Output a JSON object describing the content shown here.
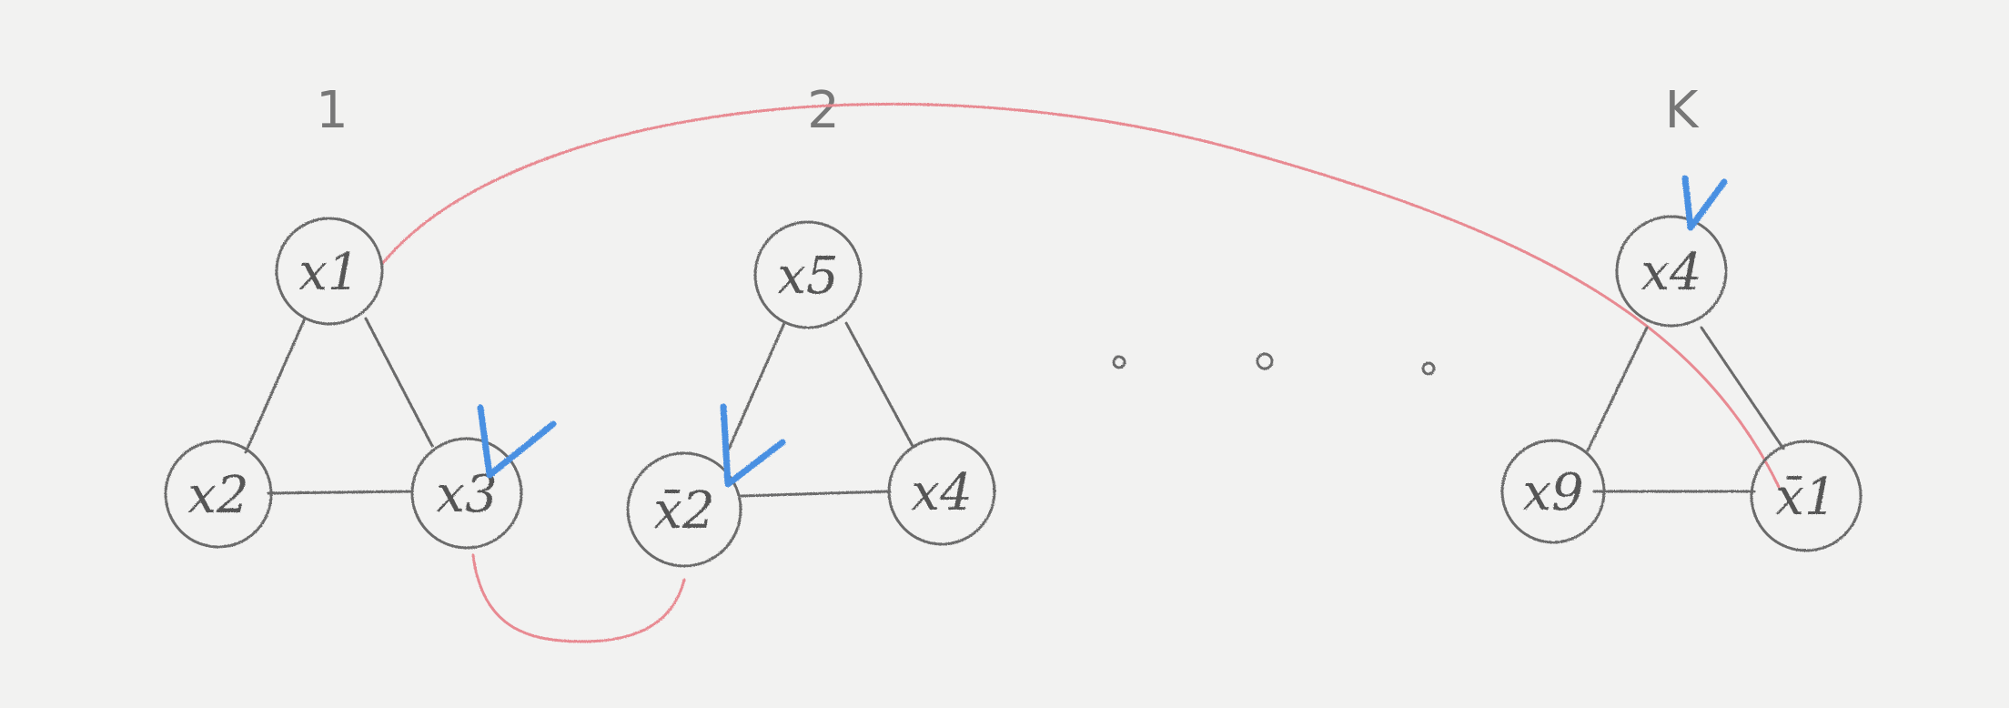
{
  "groups": [
    {
      "label": "1",
      "nodes": [
        "x1",
        "x2",
        "x3"
      ]
    },
    {
      "label": "2",
      "nodes": [
        "x5",
        "x̄2",
        "x4"
      ]
    },
    {
      "label": "K",
      "nodes": [
        "x4",
        "x9",
        "x̄1"
      ]
    }
  ],
  "ellipsis": "· · ·",
  "colors": {
    "pencil": "#6b6b6b",
    "link": "#e88a92",
    "check": "#4a90e2",
    "paper": "#f2f2f1"
  }
}
